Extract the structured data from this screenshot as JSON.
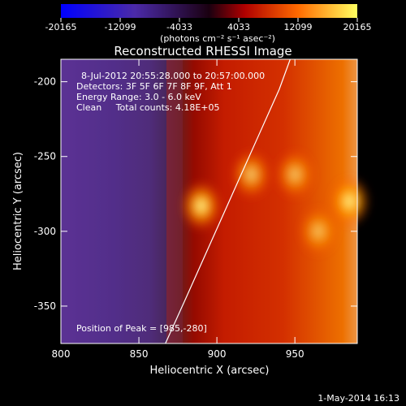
{
  "chart_data": {
    "type": "heatmap",
    "title": "Reconstructed RHESSI Image",
    "xlabel": "Heliocentric X (arcsec)",
    "ylabel": "Heliocentric Y (arcsec)",
    "xlim": [
      800,
      990
    ],
    "ylim": [
      -375,
      -185
    ],
    "x_ticks": [
      800,
      850,
      900,
      950
    ],
    "y_ticks": [
      -350,
      -300,
      -250,
      -200
    ],
    "colorbar": {
      "label": "(photons cm⁻² s⁻¹ asec⁻²)",
      "ticks": [
        -20165,
        -12099,
        -4033,
        4033,
        12099,
        20165
      ],
      "range": [
        -20165,
        20165
      ]
    },
    "annotations": [
      "8-Jul-2012 20:55:28.000 to 20:57:00.000",
      "Detectors: 3F 5F 6F 7F 8F 9F, Att 1",
      "Energy Range: 3.0 - 6.0 keV",
      "Clean     Total counts: 4.18E+05"
    ],
    "peak_text": "Position of Peak = [985,-280]",
    "peak": [
      985,
      -280
    ],
    "limb_points": [
      [
        867,
        -375
      ],
      [
        880,
        -345
      ],
      [
        895,
        -310
      ],
      [
        910,
        -275
      ],
      [
        925,
        -240
      ],
      [
        940,
        -205
      ],
      [
        947,
        -185
      ]
    ],
    "sources": [
      {
        "x": 890,
        "y": -283,
        "intensity": 1.0
      },
      {
        "x": 922,
        "y": -262,
        "intensity": 0.8
      },
      {
        "x": 950,
        "y": -262,
        "intensity": 0.75
      },
      {
        "x": 985,
        "y": -280,
        "intensity": 1.0
      },
      {
        "x": 965,
        "y": -300,
        "intensity": 0.7
      }
    ]
  },
  "footer": {
    "date": "1-May-2014 16:13"
  }
}
